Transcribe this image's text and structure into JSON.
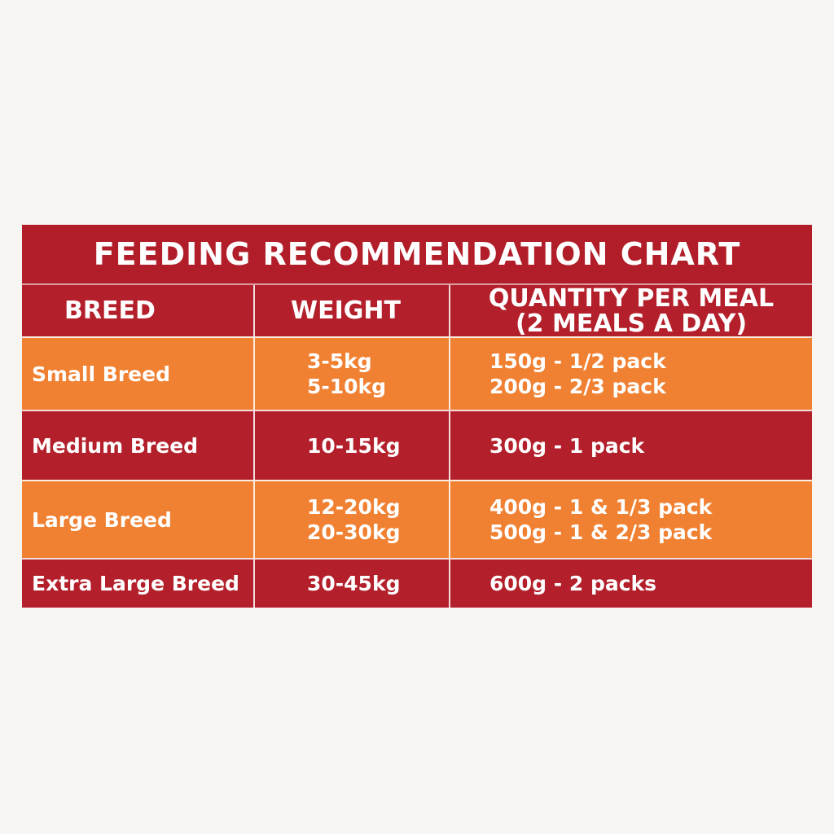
{
  "chart": {
    "title": "FEEDING RECOMMENDATION CHART",
    "headers": {
      "breed": "BREED",
      "weight": "WEIGHT",
      "quantity_line1": "QUANTITY PER MEAL",
      "quantity_line2": "(2 MEALS A DAY)"
    },
    "rows": [
      {
        "breed": "Small Breed",
        "weights": [
          "3-5kg",
          "5-10kg"
        ],
        "quantities": [
          "150g - 1/2 pack",
          "200g - 2/3 pack"
        ]
      },
      {
        "breed": "Medium Breed",
        "weights": [
          "10-15kg"
        ],
        "quantities": [
          "300g - 1 pack"
        ]
      },
      {
        "breed": "Large Breed",
        "weights": [
          "12-20kg",
          "20-30kg"
        ],
        "quantities": [
          "400g - 1 & 1/3 pack",
          "500g - 1 & 2/3 pack"
        ]
      },
      {
        "breed": "Extra Large Breed",
        "weights": [
          "30-45kg"
        ],
        "quantities": [
          "600g - 2 packs"
        ]
      }
    ],
    "colors": {
      "red": "#b31f2a",
      "orange": "#f08132",
      "background": "#f7f5f1"
    }
  }
}
